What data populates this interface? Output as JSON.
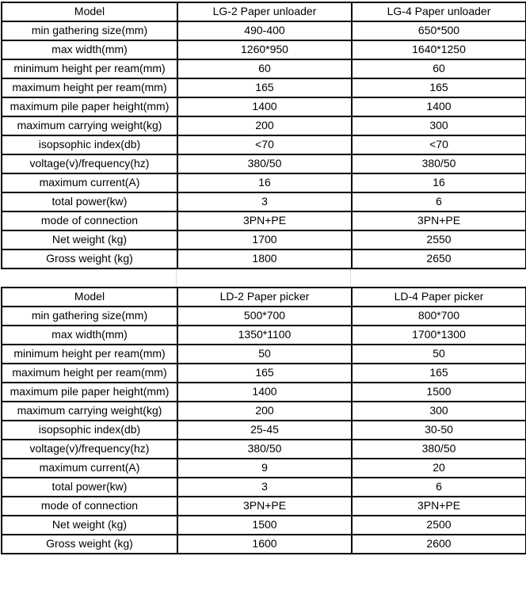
{
  "colors": {
    "border": "#000000",
    "text": "#000000",
    "background": "#ffffff",
    "gap_divider": "#dcdcdc"
  },
  "tables": [
    {
      "name": "paper-unloader-specs",
      "header": [
        "Model",
        "LG-2 Paper unloader",
        "LG-4 Paper unloader"
      ],
      "rows": [
        [
          "min gathering size(mm)",
          "490-400",
          "650*500"
        ],
        [
          "max width(mm)",
          "1260*950",
          "1640*1250"
        ],
        [
          "minimum height per ream(mm)",
          "60",
          "60"
        ],
        [
          "maximum height per ream(mm)",
          "165",
          "165"
        ],
        [
          "maximum pile paper height(mm)",
          "1400",
          "1400"
        ],
        [
          "maximum carrying weight(kg)",
          "200",
          "300"
        ],
        [
          "isopsophic index(db)",
          "<70",
          "<70"
        ],
        [
          "voltage(v)/frequency(hz)",
          "380/50",
          "380/50"
        ],
        [
          "maximum current(A)",
          "16",
          "16"
        ],
        [
          "total power(kw)",
          "3",
          "6"
        ],
        [
          "mode of connection",
          "3PN+PE",
          "3PN+PE"
        ],
        [
          "Net weight (kg)",
          "1700",
          "2550"
        ],
        [
          "Gross weight (kg)",
          "1800",
          "2650"
        ]
      ]
    },
    {
      "name": "paper-picker-specs",
      "header": [
        "Model",
        "LD-2 Paper picker",
        "LD-4 Paper picker"
      ],
      "rows": [
        [
          "min gathering size(mm)",
          "500*700",
          "800*700"
        ],
        [
          "max width(mm)",
          "1350*1100",
          "1700*1300"
        ],
        [
          "minimum height per ream(mm)",
          "50",
          "50"
        ],
        [
          "maximum height per ream(mm)",
          "165",
          "165"
        ],
        [
          "maximum pile paper height(mm)",
          "1400",
          "1500"
        ],
        [
          "maximum carrying weight(kg)",
          "200",
          "300"
        ],
        [
          "isopsophic index(db)",
          "25-45",
          "30-50"
        ],
        [
          "voltage(v)/frequency(hz)",
          "380/50",
          "380/50"
        ],
        [
          "maximum current(A)",
          "9",
          "20"
        ],
        [
          "total power(kw)",
          "3",
          "6"
        ],
        [
          "mode of connection",
          "3PN+PE",
          "3PN+PE"
        ],
        [
          "Net weight (kg)",
          "1500",
          "2500"
        ],
        [
          "Gross weight (kg)",
          "1600",
          "2600"
        ]
      ]
    }
  ]
}
